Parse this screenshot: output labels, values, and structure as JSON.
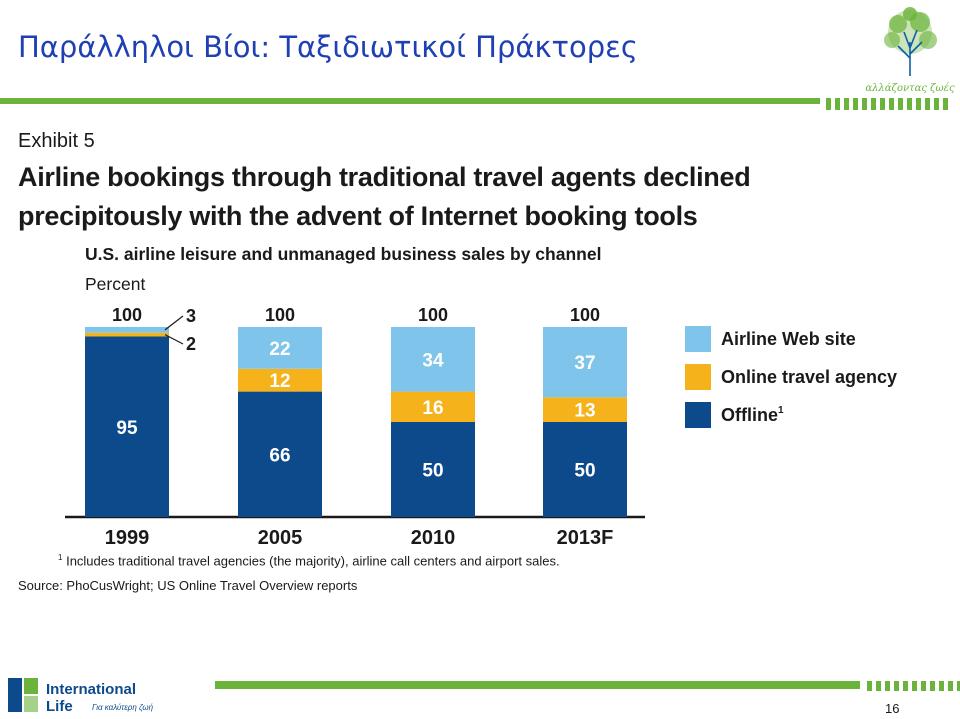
{
  "slide": {
    "title": "Παράλληλοι Βίοι: Ταξιδιωτικοί Πράκτορες",
    "page_number": "16",
    "logo_text": "αλλάζοντας ζωές",
    "brand": {
      "line1": "International",
      "line2": "Life",
      "tagline": "Για καλύτερη ζωή"
    }
  },
  "exhibit": {
    "label": "Exhibit 5",
    "headline": "Airline bookings through traditional travel agents declined precipitously with the advent of Internet booking tools",
    "subtitle": "U.S. airline leisure and unmanaged business sales by channel",
    "unit": "Percent",
    "footnote_mark": "1",
    "footnote": "Includes traditional travel agencies (the majority), airline call centers and airport sales.",
    "source": "Source: PhoCusWright; US Online Travel Overview reports"
  },
  "colors": {
    "title_blue": "#1f3fb4",
    "green": "#6bb33a",
    "airline_web_site": "#7fc4ea",
    "online_travel_agency": "#f5b21a",
    "offline": "#0d4a8c"
  },
  "chart_data": {
    "type": "bar",
    "stacked": true,
    "categories": [
      "1999",
      "2005",
      "2010",
      "2013F"
    ],
    "totals": [
      100,
      100,
      100,
      100
    ],
    "series": [
      {
        "name": "Offline",
        "superscript": "1",
        "values": [
          95,
          66,
          50,
          50
        ],
        "color": "#0d4a8c"
      },
      {
        "name": "Online travel agency",
        "values": [
          2,
          12,
          16,
          13
        ],
        "color": "#f5b21a"
      },
      {
        "name": "Airline Web site",
        "values": [
          3,
          22,
          34,
          37
        ],
        "color": "#7fc4ea"
      }
    ],
    "ylim": [
      0,
      100
    ],
    "legend": "right",
    "grid": false
  }
}
